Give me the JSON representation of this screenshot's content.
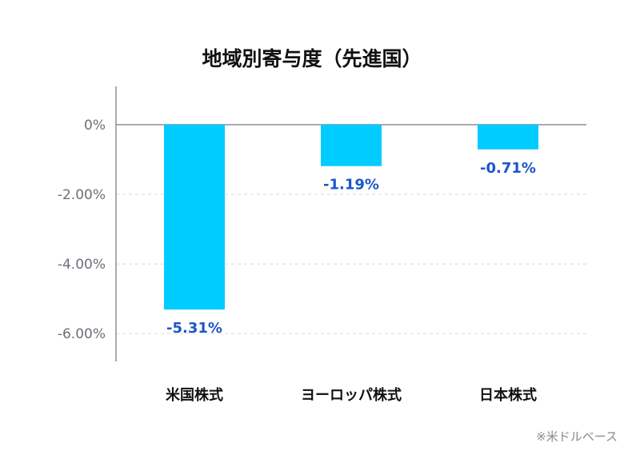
{
  "chart_data": {
    "type": "bar",
    "title": "地域別寄与度（先進国）",
    "categories": [
      "米国株式",
      "ヨーロッパ株式",
      "日本株式"
    ],
    "values": [
      -5.31,
      -1.19,
      -0.71
    ],
    "data_labels": [
      "-5.31%",
      "-1.19%",
      "-0.71%"
    ],
    "yticks": [
      {
        "value": 0,
        "label": "0%"
      },
      {
        "value": -2,
        "label": "-2.00%"
      },
      {
        "value": -4,
        "label": "-4.00%"
      },
      {
        "value": -6,
        "label": "-6.00%"
      }
    ],
    "ylim": [
      -6.8,
      1.1
    ],
    "grid": true,
    "bar_color": "#00ccff",
    "label_color": "#1a56c9",
    "note": "※米ドルベース"
  }
}
